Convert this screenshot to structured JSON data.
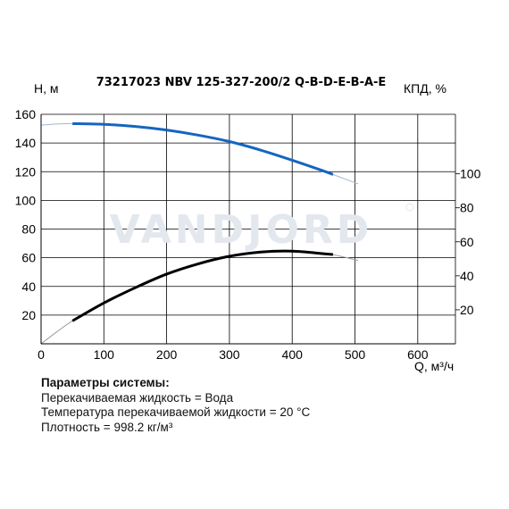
{
  "chart_data": {
    "type": "line",
    "title": "73217023 NBV 125-327-200/2 Q-B-D-E-B-A-E",
    "xlabel": "Q, м³/ч",
    "ylabel_left": "H, м",
    "ylabel_right": "КПД, %",
    "xlim": [
      0,
      660
    ],
    "ylim_left": [
      0,
      160
    ],
    "ylim_right": [
      0,
      135
    ],
    "x_ticks": [
      "0",
      "100",
      "200",
      "300",
      "400",
      "500",
      "600"
    ],
    "y_left_ticks": [
      "20",
      "40",
      "60",
      "80",
      "100",
      "120",
      "140",
      "160"
    ],
    "y_right_ticks": [
      "20",
      "40",
      "60",
      "80",
      "100"
    ],
    "grid": true,
    "series": [
      {
        "axis": "left",
        "color": "#1565c0",
        "extension_color": "#9fb8d6",
        "operating_range": [
          50,
          465
        ],
        "x": [
          0,
          25,
          50,
          100,
          150,
          200,
          250,
          300,
          350,
          400,
          450,
          465,
          505
        ],
        "y": [
          152.5,
          153.2,
          153.5,
          153,
          151.5,
          149,
          145.5,
          141,
          135,
          128,
          120.5,
          118,
          111.5
        ]
      },
      {
        "axis": "right",
        "color": "#000000",
        "extension_color": "#9a9a9a",
        "operating_range": [
          50,
          465
        ],
        "x": [
          0,
          25,
          50,
          100,
          150,
          200,
          250,
          300,
          350,
          400,
          450,
          465,
          505
        ],
        "y": [
          0,
          7,
          13.5,
          24,
          33,
          41,
          47,
          51.5,
          54,
          54.5,
          53,
          52.5,
          49
        ]
      }
    ]
  },
  "watermark": "VANDJORD",
  "watermark_color": "#e3e8ef",
  "parameters": {
    "heading": "Параметры системы:",
    "lines": [
      "Перекачиваемая жидкость = Вода",
      "Температура перекачиваемой жидкости = 20 °C",
      "Плотность = 998.2 кг/м³"
    ]
  }
}
